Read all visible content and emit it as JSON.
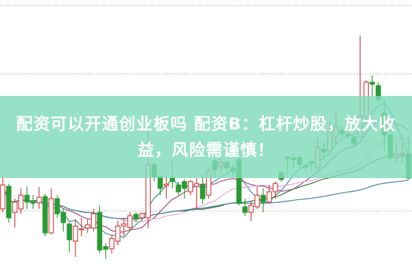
{
  "headline": "配资可以开通创业板吗 配资B：杠杆炒股，放大收益，风险需谨慎！",
  "colors": {
    "up": "#d23a3a",
    "down": "#2a9a34",
    "banner": "#80dab6",
    "grid": "#9a9a9a"
  },
  "chart_data": {
    "type": "candlestick",
    "title": "",
    "xlabel": "",
    "ylabel": "",
    "ylim": [
      0,
      40
    ],
    "grid": true,
    "moving_averages": [
      {
        "period": 5,
        "color": "#2f8f8a"
      },
      {
        "period": 10,
        "color": "#a0407a"
      },
      {
        "period": 20,
        "color": "#e6a0e6"
      },
      {
        "period": 30,
        "color": "#2e6a2e"
      },
      {
        "period": 60,
        "color": "#3a7f9a"
      }
    ],
    "candles": [
      [
        9.5,
        13.0,
        14.5,
        9.0
      ],
      [
        12.8,
        8.2,
        13.2,
        7.5
      ],
      [
        9.0,
        10.5,
        11.0,
        6.8
      ],
      [
        9.5,
        11.5,
        12.5,
        8.8
      ],
      [
        11.5,
        10.5,
        12.8,
        9.5
      ],
      [
        10.7,
        10.4,
        11.5,
        9.5
      ],
      [
        10.4,
        11.2,
        12.7,
        9.5
      ],
      [
        11.3,
        6.0,
        11.7,
        5.5
      ],
      [
        6.0,
        11.0,
        12.5,
        5.8
      ],
      [
        11.0,
        8.8,
        11.5,
        8.2
      ],
      [
        9.0,
        7.5,
        9.5,
        6.2
      ],
      [
        7.3,
        5.0,
        7.5,
        3.2
      ],
      [
        4.8,
        7.0,
        8.0,
        2.5
      ],
      [
        6.5,
        6.6,
        8.2,
        5.5
      ],
      [
        6.7,
        7.2,
        8.0,
        6.0
      ],
      [
        6.7,
        8.8,
        9.5,
        6.2
      ],
      [
        9.0,
        3.5,
        10.0,
        3.0
      ],
      [
        4.0,
        3.6,
        4.5,
        2.2
      ],
      [
        3.7,
        5.2,
        5.7,
        3.0
      ],
      [
        4.8,
        7.0,
        7.8,
        4.2
      ],
      [
        7.0,
        7.3,
        8.2,
        5.5
      ],
      [
        6.8,
        8.5,
        9.0,
        6.3
      ],
      [
        8.7,
        8.0,
        9.0,
        7.5
      ],
      [
        8.2,
        8.8,
        9.0,
        7.8
      ],
      [
        8.2,
        16.0,
        21.5,
        6.7
      ],
      [
        16.0,
        14.2,
        16.3,
        13.5
      ],
      [
        14.2,
        12.5,
        14.5,
        11.5
      ],
      [
        12.9,
        13.1,
        14.2,
        11.0
      ],
      [
        14.0,
        13.5,
        16.5,
        12.5
      ],
      [
        13.0,
        12.0,
        13.5,
        11.5
      ],
      [
        13.5,
        12.5,
        13.8,
        11.0
      ],
      [
        12.0,
        13.5,
        13.7,
        11.5
      ],
      [
        12.8,
        13.2,
        14.0,
        9.5
      ],
      [
        13.0,
        11.0,
        14.5,
        10.2
      ],
      [
        11.5,
        15.0,
        15.5,
        11.0
      ],
      [
        16.5,
        15.2,
        16.8,
        14.0
      ],
      [
        15.7,
        16.3,
        16.8,
        15.0
      ],
      [
        16.3,
        15.5,
        16.5,
        15.0
      ],
      [
        15.5,
        15.0,
        16.0,
        14.5
      ],
      [
        16.7,
        10.3,
        17.0,
        10.0
      ],
      [
        9.8,
        9.0,
        11.0,
        8.5
      ],
      [
        9.0,
        10.0,
        10.7,
        7.7
      ],
      [
        9.8,
        11.5,
        12.8,
        9.5
      ],
      [
        11.5,
        10.5,
        12.5,
        9.0
      ],
      [
        10.5,
        12.0,
        13.0,
        10.2
      ],
      [
        12.0,
        13.2,
        13.5,
        11.0
      ],
      [
        14.8,
        13.8,
        15.2,
        13.5
      ],
      [
        17.1,
        16.9,
        17.1,
        14.5
      ],
      [
        16.9,
        16.7,
        17.5,
        15.5
      ],
      [
        17.0,
        16.0,
        17.2,
        15.5
      ],
      [
        15.8,
        15.6,
        16.2,
        15.0
      ],
      [
        16.4,
        16.2,
        16.8,
        15.2
      ],
      [
        15.5,
        18.5,
        20.0,
        15.2
      ],
      [
        18.2,
        17.8,
        19.2,
        17.0
      ],
      [
        18.0,
        20.7,
        22.2,
        17.2
      ],
      [
        20.0,
        21.5,
        23.5,
        19.0
      ],
      [
        21.0,
        20.5,
        21.5,
        20.0
      ],
      [
        20.4,
        20.2,
        21.0,
        19.8
      ],
      [
        20.0,
        19.0,
        20.2,
        18.5
      ],
      [
        20.0,
        23.0,
        34.8,
        20.0
      ],
      [
        23.0,
        28.0,
        28.3,
        22.5
      ],
      [
        28.0,
        27.7,
        29.0,
        26.0
      ],
      [
        27.5,
        25.5,
        28.0,
        25.0
      ],
      [
        23.5,
        20.3,
        25.5,
        18.0
      ],
      [
        20.3,
        17.0,
        21.5,
        16.5
      ],
      [
        17.0,
        17.5,
        19.0,
        16.0
      ],
      [
        17.4,
        17.6,
        19.0,
        16.2
      ],
      [
        17.5,
        14.0,
        20.0,
        13.8
      ]
    ],
    "candle_fields": [
      "open",
      "close",
      "high",
      "low"
    ]
  }
}
